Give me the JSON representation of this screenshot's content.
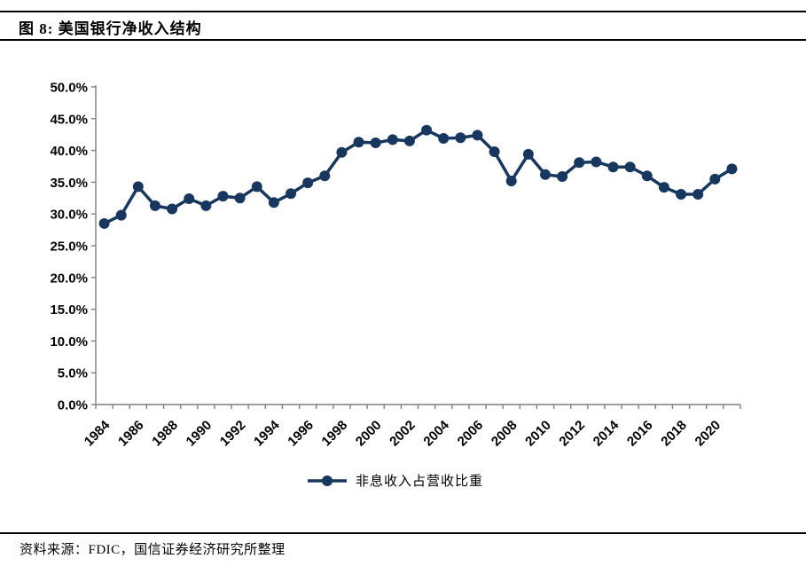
{
  "header": {
    "title": "图 8: 美国银行净收入结构"
  },
  "footer": {
    "source": "资料来源：FDIC，国信证券经济研究所整理"
  },
  "legend": {
    "label": "非息收入占营收比重"
  },
  "colors": {
    "line": "#17375E",
    "marker": "#17375E",
    "axis": "#808080",
    "label": "#000000"
  },
  "chart_data": {
    "type": "line",
    "title": "美国银行净收入结构",
    "xlabel": "",
    "ylabel": "",
    "x": [
      1984,
      1985,
      1986,
      1987,
      1988,
      1989,
      1990,
      1991,
      1992,
      1993,
      1994,
      1995,
      1996,
      1997,
      1998,
      1999,
      2000,
      2001,
      2002,
      2003,
      2004,
      2005,
      2006,
      2007,
      2008,
      2009,
      2010,
      2011,
      2012,
      2013,
      2014,
      2015,
      2016,
      2017,
      2018,
      2019,
      2020,
      2021
    ],
    "series": [
      {
        "name": "非息收入占营收比重",
        "values": [
          28.5,
          29.8,
          34.3,
          31.3,
          30.8,
          32.4,
          31.3,
          32.8,
          32.5,
          34.3,
          31.8,
          33.2,
          34.9,
          36.0,
          39.7,
          41.3,
          41.2,
          41.7,
          41.5,
          43.2,
          41.9,
          42.0,
          42.4,
          39.8,
          35.2,
          39.4,
          36.2,
          35.9,
          38.1,
          38.2,
          37.4,
          37.4,
          36.0,
          34.2,
          33.1,
          33.1,
          35.5,
          37.1
        ]
      }
    ],
    "ylim": [
      0,
      50
    ],
    "ytick_labels": [
      "0.0%",
      "5.0%",
      "10.0%",
      "15.0%",
      "20.0%",
      "25.0%",
      "30.0%",
      "35.0%",
      "40.0%",
      "45.0%",
      "50.0%"
    ],
    "xtick_labels": [
      "1984",
      "1986",
      "1988",
      "1990",
      "1992",
      "1994",
      "1996",
      "1998",
      "2000",
      "2002",
      "2004",
      "2006",
      "2008",
      "2010",
      "2012",
      "2014",
      "2016",
      "2018",
      "2020"
    ],
    "grid": false,
    "legend_position": "bottom"
  }
}
